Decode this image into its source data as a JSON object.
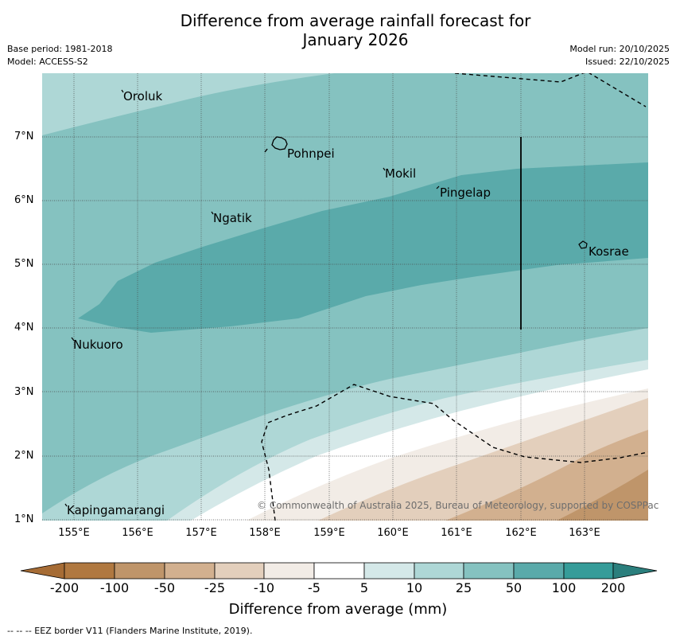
{
  "title": {
    "line1": "Difference from average rainfall forecast for",
    "line2": "January 2026"
  },
  "meta": {
    "base_period": "Base period: 1981-2018",
    "model": "Model: ACCESS-S2",
    "model_run": "Model run: 20/10/2025",
    "issued": "Issued: 22/10/2025"
  },
  "places": {
    "oroluk": "Oroluk",
    "pohnpei": "Pohnpei",
    "mokil": "Mokil",
    "pingelap": "Pingelap",
    "ngatik": "Ngatik",
    "kosrae": "Kosrae",
    "nukuoro": "Nukuoro",
    "kapingamarangi": "Kapingamarangi"
  },
  "axes": {
    "lat_ticks": [
      "7°N",
      "6°N",
      "5°N",
      "4°N",
      "3°N",
      "2°N",
      "1°N"
    ],
    "lon_ticks": [
      "155°E",
      "156°E",
      "157°E",
      "158°E",
      "159°E",
      "160°E",
      "161°E",
      "162°E",
      "163°E"
    ]
  },
  "copyright": "© Commonwealth of Australia 2025, Bureau of Meteorology, supported by COSPPac",
  "colorbar": {
    "title": "Difference from average (mm)",
    "labels": [
      "-200",
      "-100",
      "-50",
      "-25",
      "-10",
      "-5",
      "5",
      "10",
      "25",
      "50",
      "100",
      "200"
    ],
    "colors": [
      "#A66C35",
      "#B07840",
      "#BF956A",
      "#D2B08F",
      "#E3CFBC",
      "#F2ECE6",
      "#FFFFFF",
      "#D4E8E8",
      "#AED7D6",
      "#85C2C0",
      "#5AAAAA",
      "#369C99",
      "#2B7F7D"
    ]
  },
  "eez_note": "--  --  -- EEZ border V11 (Flanders Marine Institute, 2019)."
}
